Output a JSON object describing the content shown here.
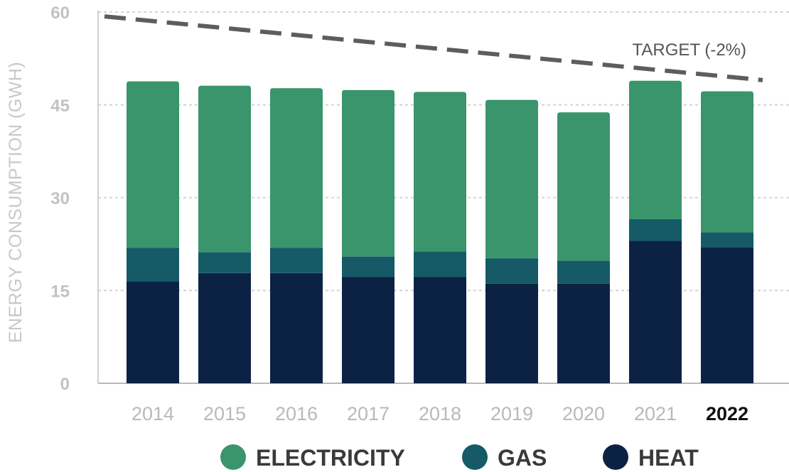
{
  "chart_data": {
    "type": "bar",
    "stacked": true,
    "ylabel": "ENERGY CONSUMPTION (GWH)",
    "xlabel": "",
    "ylim": [
      0,
      60
    ],
    "yticks": [
      0,
      15,
      30,
      45,
      60
    ],
    "grid": true,
    "legend_position": "bottom",
    "categories": [
      "2014",
      "2015",
      "2016",
      "2017",
      "2018",
      "2019",
      "2020",
      "2021",
      "2022"
    ],
    "highlight_category": "2022",
    "series": [
      {
        "name": "HEAT",
        "color": "#0c2244",
        "values": [
          16.5,
          17.8,
          17.8,
          17.2,
          17.2,
          16.1,
          16.1,
          23.0,
          22.0
        ]
      },
      {
        "name": "GAS",
        "color": "#155a66",
        "values": [
          5.4,
          3.4,
          4.1,
          3.3,
          4.1,
          4.1,
          3.7,
          3.5,
          2.4
        ]
      },
      {
        "name": "ELECTRICITY",
        "color": "#3a956c",
        "values": [
          26.9,
          26.9,
          25.8,
          26.9,
          25.8,
          25.6,
          24.0,
          22.4,
          22.8
        ]
      }
    ],
    "target_line": {
      "label": "TARGET (-2%)",
      "color": "#5d5d5d",
      "style": "dashed",
      "start_value": 59.3,
      "end_value": 49.0
    },
    "legend_order": [
      "ELECTRICITY",
      "GAS",
      "HEAT"
    ]
  }
}
